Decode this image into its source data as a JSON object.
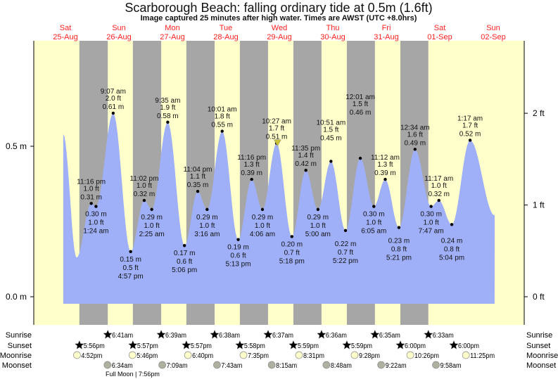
{
  "chart_data": {
    "type": "area",
    "title": "Scarborough Beach: falling  ordinary tide at 0.5m (1.6ft)",
    "subtitle": "Image captured 25 minutes after high water. Times are AWST (UTC +8.0hrs)",
    "ylabel_left_ticks": [
      {
        "v": 0.0,
        "label": "0.0 m"
      },
      {
        "v": 0.5,
        "label": "0.5 m"
      }
    ],
    "ylabel_right_ticks": [
      {
        "v": 0,
        "label": "0 ft"
      },
      {
        "v": 1,
        "label": "1 ft"
      },
      {
        "v": 2,
        "label": "2 ft"
      }
    ],
    "ylim_m": [
      -0.09,
      0.85
    ],
    "days": [
      {
        "dow": "Sat",
        "date": "25-Aug"
      },
      {
        "dow": "Sun",
        "date": "26-Aug"
      },
      {
        "dow": "Mon",
        "date": "27-Aug"
      },
      {
        "dow": "Tue",
        "date": "28-Aug"
      },
      {
        "dow": "Wed",
        "date": "29-Aug"
      },
      {
        "dow": "Thu",
        "date": "30-Aug"
      },
      {
        "dow": "Fri",
        "date": "31-Aug"
      },
      {
        "dow": "Sat",
        "date": "01-Sep"
      },
      {
        "dow": "Sun",
        "date": "02-Sep"
      }
    ],
    "curve_start": {
      "day": 0,
      "hours": 10.7,
      "value": 0.54
    },
    "curve_min_unlabeled": {
      "day": 0,
      "hours": 16.7,
      "value": 0.13
    },
    "curve_end": {
      "day": 8,
      "hours": 12.3,
      "value": 0.27
    },
    "extrema": [
      {
        "day": 0,
        "time": "11:16 pm",
        "ft": "1.0 ft",
        "m": "0.31 m",
        "value": 0.31,
        "type": "high"
      },
      {
        "day": 1,
        "time": "1:24 am",
        "ft": "1.0 ft",
        "m": "0.30 m",
        "value": 0.3,
        "type": "low"
      },
      {
        "day": 1,
        "time": "9:07 am",
        "ft": "2.0 ft",
        "m": "0.61 m",
        "value": 0.61,
        "type": "high"
      },
      {
        "day": 1,
        "time": "4:57 pm",
        "ft": "0.5 ft",
        "m": "0.15 m",
        "value": 0.15,
        "type": "low"
      },
      {
        "day": 1,
        "time": "11:02 pm",
        "ft": "1.0 ft",
        "m": "0.32 m",
        "value": 0.32,
        "type": "high"
      },
      {
        "day": 2,
        "time": "2:25 am",
        "ft": "1.0 ft",
        "m": "0.29 m",
        "value": 0.29,
        "type": "low"
      },
      {
        "day": 2,
        "time": "9:35 am",
        "ft": "1.9 ft",
        "m": "0.58 m",
        "value": 0.58,
        "type": "high"
      },
      {
        "day": 2,
        "time": "5:06 pm",
        "ft": "0.6 ft",
        "m": "0.17 m",
        "value": 0.17,
        "type": "low"
      },
      {
        "day": 2,
        "time": "11:04 pm",
        "ft": "1.1 ft",
        "m": "0.35 m",
        "value": 0.35,
        "type": "high"
      },
      {
        "day": 3,
        "time": "3:16 am",
        "ft": "1.0 ft",
        "m": "0.29 m",
        "value": 0.29,
        "type": "low"
      },
      {
        "day": 3,
        "time": "10:01 am",
        "ft": "1.8 ft",
        "m": "0.55 m",
        "value": 0.55,
        "type": "high"
      },
      {
        "day": 3,
        "time": "5:13 pm",
        "ft": "0.6 ft",
        "m": "0.19 m",
        "value": 0.19,
        "type": "low"
      },
      {
        "day": 3,
        "time": "11:16 pm",
        "ft": "1.3 ft",
        "m": "0.39 m",
        "value": 0.39,
        "type": "high"
      },
      {
        "day": 4,
        "time": "4:06 am",
        "ft": "1.0 ft",
        "m": "0.29 m",
        "value": 0.29,
        "type": "low"
      },
      {
        "day": 4,
        "time": "10:27 am",
        "ft": "1.7 ft",
        "m": "0.51 m",
        "value": 0.51,
        "type": "high"
      },
      {
        "day": 4,
        "time": "5:18 pm",
        "ft": "0.7 ft",
        "m": "0.20 m",
        "value": 0.2,
        "type": "low"
      },
      {
        "day": 4,
        "time": "11:35 pm",
        "ft": "1.4 ft",
        "m": "0.42 m",
        "value": 0.42,
        "type": "high"
      },
      {
        "day": 5,
        "time": "5:00 am",
        "ft": "1.0 ft",
        "m": "0.29 m",
        "value": 0.29,
        "type": "low"
      },
      {
        "day": 5,
        "time": "10:51 am",
        "ft": "1.5 ft",
        "m": "0.45 m",
        "value": 0.45,
        "type": "high"
      },
      {
        "day": 5,
        "time": "5:22 pm",
        "ft": "0.7 ft",
        "m": "0.22 m",
        "value": 0.22,
        "type": "low"
      },
      {
        "day": 6,
        "time": "12:01 am",
        "ft": "1.5 ft",
        "m": "0.46 m",
        "value": 0.46,
        "type": "high"
      },
      {
        "day": 6,
        "time": "6:05 am",
        "ft": "1.0 ft",
        "m": "0.30 m",
        "value": 0.3,
        "type": "low"
      },
      {
        "day": 6,
        "time": "11:12 am",
        "ft": "1.3 ft",
        "m": "0.39 m",
        "value": 0.39,
        "type": "high"
      },
      {
        "day": 6,
        "time": "5:21 pm",
        "ft": "0.8 ft",
        "m": "0.23 m",
        "value": 0.23,
        "type": "low"
      },
      {
        "day": 7,
        "time": "12:34 am",
        "ft": "1.6 ft",
        "m": "0.49 m",
        "value": 0.49,
        "type": "high"
      },
      {
        "day": 7,
        "time": "7:47 am",
        "ft": "1.0 ft",
        "m": "0.30 m",
        "value": 0.3,
        "type": "low"
      },
      {
        "day": 7,
        "time": "11:17 am",
        "ft": "1.0 ft",
        "m": "0.32 m",
        "value": 0.32,
        "type": "high"
      },
      {
        "day": 7,
        "time": "5:04 pm",
        "ft": "0.8 ft",
        "m": "0.24 m",
        "value": 0.24,
        "type": "low"
      },
      {
        "day": 8,
        "time": "1:17 am",
        "ft": "1.7 ft",
        "m": "0.52 m",
        "value": 0.52,
        "type": "high"
      }
    ],
    "current": {
      "day": 4,
      "time": "10:52 am",
      "value": 0.51
    },
    "rows": {
      "labels": {
        "sunrise": "Sunrise",
        "sunset": "Sunset",
        "moonrise": "Moonrise",
        "moonset": "Moonset"
      },
      "sunrise": [
        {
          "day": 1,
          "time": "6:41am"
        },
        {
          "day": 2,
          "time": "6:39am"
        },
        {
          "day": 3,
          "time": "6:38am"
        },
        {
          "day": 4,
          "time": "6:37am"
        },
        {
          "day": 5,
          "time": "6:36am"
        },
        {
          "day": 6,
          "time": "6:35am"
        },
        {
          "day": 7,
          "time": "6:33am"
        }
      ],
      "sunset": [
        {
          "day": 0,
          "time": "5:56pm"
        },
        {
          "day": 1,
          "time": "5:57pm"
        },
        {
          "day": 2,
          "time": "5:57pm"
        },
        {
          "day": 3,
          "time": "5:58pm"
        },
        {
          "day": 4,
          "time": "5:59pm"
        },
        {
          "day": 5,
          "time": "5:59pm"
        },
        {
          "day": 6,
          "time": "6:00pm"
        },
        {
          "day": 7,
          "time": "6:00pm"
        }
      ],
      "moonrise": [
        {
          "day": 0,
          "time": "4:52pm"
        },
        {
          "day": 1,
          "time": "5:46pm"
        },
        {
          "day": 2,
          "time": "6:40pm"
        },
        {
          "day": 3,
          "time": "7:35pm"
        },
        {
          "day": 4,
          "time": "8:31pm"
        },
        {
          "day": 5,
          "time": "9:28pm"
        },
        {
          "day": 6,
          "time": "10:26pm"
        },
        {
          "day": 7,
          "time": "11:25pm"
        }
      ],
      "moonset": [
        {
          "day": 1,
          "time": "6:34am"
        },
        {
          "day": 2,
          "time": "7:09am"
        },
        {
          "day": 3,
          "time": "7:43am"
        },
        {
          "day": 4,
          "time": "8:15am"
        },
        {
          "day": 5,
          "time": "8:48am"
        },
        {
          "day": 6,
          "time": "9:22am"
        },
        {
          "day": 7,
          "time": "9:58am"
        }
      ]
    },
    "moon_phase": {
      "label": "Full Moon | 7:56pm",
      "day": 1,
      "time": "7:56pm"
    }
  },
  "colors": {
    "day": "#ffffcc",
    "night": "#a6a6a6",
    "water": "#9fb0f8",
    "date": "#ff2020",
    "sun_rise": "#c8c030",
    "sun_set": "#d03020",
    "moon_rise": "#ffffcc",
    "moon_set": "#b0b0a0"
  }
}
